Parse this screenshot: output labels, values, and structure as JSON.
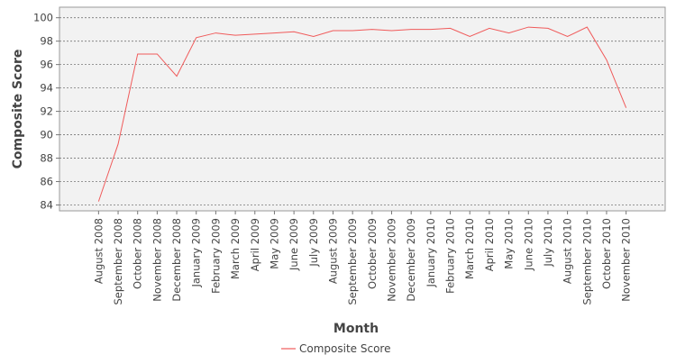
{
  "chart_data": {
    "type": "line",
    "x_label": "Month",
    "y_label": "Composite Score",
    "categories": [
      "August 2008",
      "September 2008",
      "October 2008",
      "November 2008",
      "December 2008",
      "January 2009",
      "February 2009",
      "March 2009",
      "April 2009",
      "May 2009",
      "June 2009",
      "July 2009",
      "August 2009",
      "September 2009",
      "October 2009",
      "November 2009",
      "December 2009",
      "January 2010",
      "February 2010",
      "March 2010",
      "April 2010",
      "May 2010",
      "June 2010",
      "July 2010",
      "August 2010",
      "September 2010",
      "October 2010",
      "November 2010"
    ],
    "series": [
      {
        "name": "Composite Score",
        "color": "#f05a5a",
        "values": [
          84.3,
          89.2,
          96.9,
          96.9,
          95.0,
          98.3,
          98.7,
          98.5,
          98.6,
          98.7,
          98.8,
          98.4,
          98.9,
          98.9,
          99.0,
          98.9,
          99.0,
          99.0,
          99.1,
          98.4,
          99.1,
          98.7,
          99.2,
          99.1,
          98.4,
          99.2,
          96.4,
          92.3
        ]
      }
    ],
    "ylim": [
      83.5,
      100.9
    ],
    "yticks": [
      84,
      86,
      88,
      90,
      92,
      94,
      96,
      98,
      100
    ],
    "grid": true,
    "legend": "bottom"
  }
}
